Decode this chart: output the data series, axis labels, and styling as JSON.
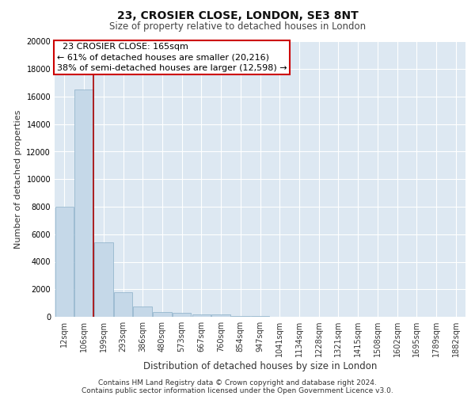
{
  "title1": "23, CROSIER CLOSE, LONDON, SE3 8NT",
  "title2": "Size of property relative to detached houses in London",
  "xlabel": "Distribution of detached houses by size in London",
  "ylabel": "Number of detached properties",
  "annotation_line1": "  23 CROSIER CLOSE: 165sqm",
  "annotation_line2": "← 61% of detached houses are smaller (20,216)",
  "annotation_line3": "38% of semi-detached houses are larger (12,598) →",
  "footnote1": "Contains HM Land Registry data © Crown copyright and database right 2024.",
  "footnote2": "Contains public sector information licensed under the Open Government Licence v3.0.",
  "bin_labels": [
    "12sqm",
    "106sqm",
    "199sqm",
    "293sqm",
    "386sqm",
    "480sqm",
    "573sqm",
    "667sqm",
    "760sqm",
    "854sqm",
    "947sqm",
    "1041sqm",
    "1134sqm",
    "1228sqm",
    "1321sqm",
    "1415sqm",
    "1508sqm",
    "1602sqm",
    "1695sqm",
    "1789sqm",
    "1882sqm"
  ],
  "bar_heights": [
    8000,
    16500,
    5400,
    1800,
    750,
    350,
    270,
    200,
    200,
    50,
    30,
    20,
    15,
    10,
    8,
    6,
    5,
    4,
    3,
    2,
    2
  ],
  "bar_color": "#c5d8e8",
  "bar_edge_color": "#8aafc8",
  "vline_color": "#aa0000",
  "vline_x": 1.5,
  "annotation_box_color": "#cc0000",
  "ylim": [
    0,
    20000
  ],
  "yticks": [
    0,
    2000,
    4000,
    6000,
    8000,
    10000,
    12000,
    14000,
    16000,
    18000,
    20000
  ],
  "bg_color": "#dde8f2",
  "grid_color": "#ffffff",
  "title1_fontsize": 10,
  "title2_fontsize": 8.5,
  "xlabel_fontsize": 8.5,
  "ylabel_fontsize": 8,
  "tick_fontsize": 7,
  "annotation_fontsize": 8,
  "footnote_fontsize": 6.5
}
